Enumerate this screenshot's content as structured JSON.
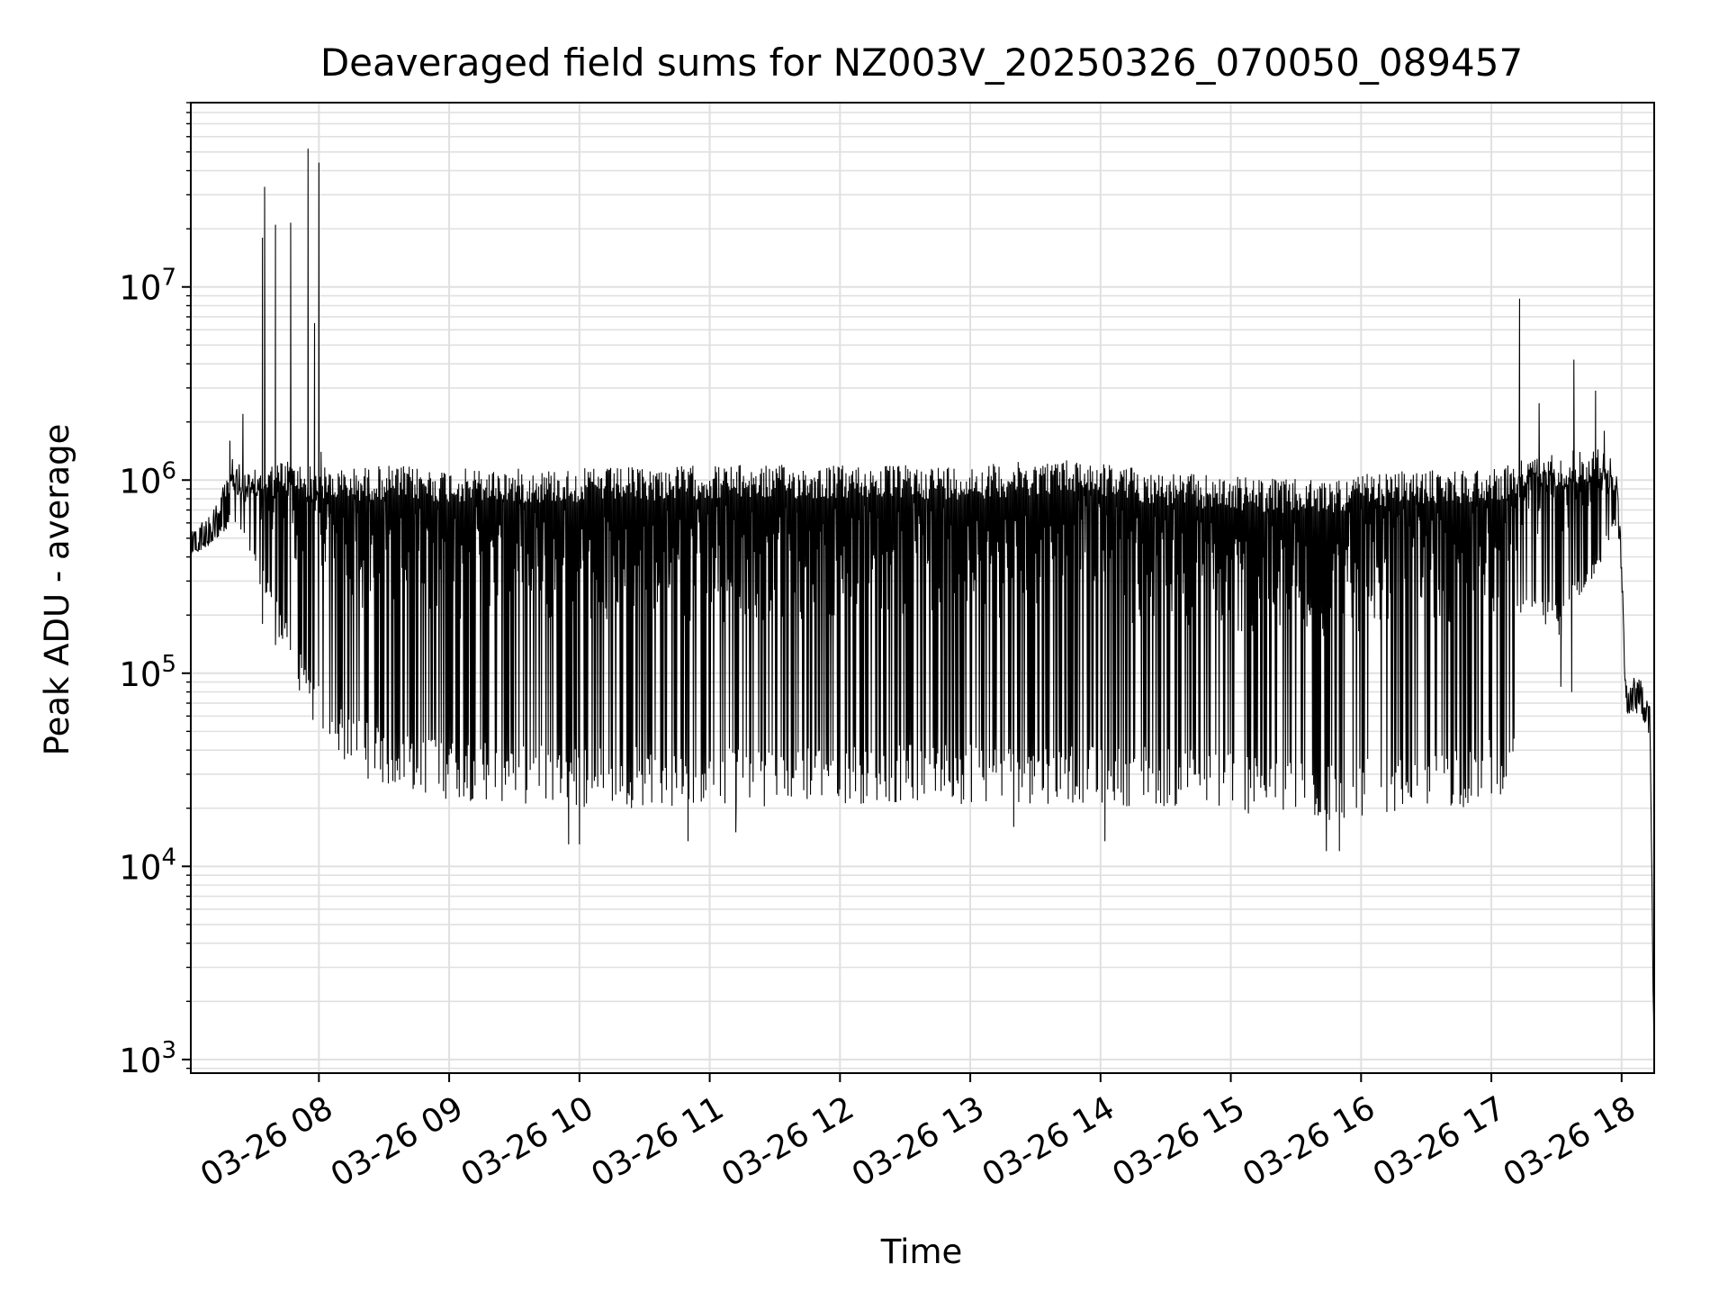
{
  "chart_data": {
    "type": "line",
    "title": "Deaveraged field sums for NZ003V_20250326_070050_089457",
    "xlabel": "Time",
    "ylabel": "Peak ADU - average",
    "yscale": "log",
    "ylim": [
      850,
      90000000
    ],
    "xlim": [
      "2025-03-26 07:01",
      "2025-03-26 18:15"
    ],
    "grid": true,
    "legend": "none",
    "colors": {
      "line": "#000000",
      "grid": "#e0e0e0",
      "axes": "#000000"
    },
    "x_ticks": [
      {
        "time": "2025-03-26 08:00",
        "label": "03-26 08"
      },
      {
        "time": "2025-03-26 09:00",
        "label": "03-26 09"
      },
      {
        "time": "2025-03-26 10:00",
        "label": "03-26 10"
      },
      {
        "time": "2025-03-26 11:00",
        "label": "03-26 11"
      },
      {
        "time": "2025-03-26 12:00",
        "label": "03-26 12"
      },
      {
        "time": "2025-03-26 13:00",
        "label": "03-26 13"
      },
      {
        "time": "2025-03-26 14:00",
        "label": "03-26 14"
      },
      {
        "time": "2025-03-26 15:00",
        "label": "03-26 15"
      },
      {
        "time": "2025-03-26 16:00",
        "label": "03-26 16"
      },
      {
        "time": "2025-03-26 17:00",
        "label": "03-26 17"
      },
      {
        "time": "2025-03-26 18:00",
        "label": "03-26 18"
      }
    ],
    "y_ticks": [
      {
        "value": 1000,
        "base": "10",
        "exp": "3"
      },
      {
        "value": 10000,
        "base": "10",
        "exp": "4"
      },
      {
        "value": 100000,
        "base": "10",
        "exp": "5"
      },
      {
        "value": 1000000,
        "base": "10",
        "exp": "6"
      },
      {
        "value": 10000000,
        "base": "10",
        "exp": "7"
      }
    ],
    "envelope": {
      "description_of_fields": "per time: upper value and lower value of the oscillating trace",
      "points": [
        {
          "time": "2025-03-26 07:01",
          "upper": 550000,
          "lower": 400000
        },
        {
          "time": "2025-03-26 07:10",
          "upper": 700000,
          "lower": 450000
        },
        {
          "time": "2025-03-26 07:20",
          "upper": 1300000,
          "lower": 600000
        },
        {
          "time": "2025-03-26 07:28",
          "upper": 1100000,
          "lower": 400000
        },
        {
          "time": "2025-03-26 07:35",
          "upper": 1200000,
          "lower": 250000
        },
        {
          "time": "2025-03-26 07:45",
          "upper": 1300000,
          "lower": 120000
        },
        {
          "time": "2025-03-26 07:55",
          "upper": 1200000,
          "lower": 60000
        },
        {
          "time": "2025-03-26 08:10",
          "upper": 1150000,
          "lower": 35000
        },
        {
          "time": "2025-03-26 08:30",
          "upper": 1200000,
          "lower": 25000
        },
        {
          "time": "2025-03-26 09:00",
          "upper": 1150000,
          "lower": 22000
        },
        {
          "time": "2025-03-26 10:00",
          "upper": 1150000,
          "lower": 20000
        },
        {
          "time": "2025-03-26 11:00",
          "upper": 1200000,
          "lower": 20000
        },
        {
          "time": "2025-03-26 12:00",
          "upper": 1200000,
          "lower": 21000
        },
        {
          "time": "2025-03-26 13:00",
          "upper": 1200000,
          "lower": 21000
        },
        {
          "time": "2025-03-26 13:50",
          "upper": 1300000,
          "lower": 21000
        },
        {
          "time": "2025-03-26 14:30",
          "upper": 1100000,
          "lower": 20000
        },
        {
          "time": "2025-03-26 15:00",
          "upper": 1050000,
          "lower": 19000
        },
        {
          "time": "2025-03-26 15:40",
          "upper": 1000000,
          "lower": 16000
        },
        {
          "time": "2025-03-26 16:10",
          "upper": 1100000,
          "lower": 19000
        },
        {
          "time": "2025-03-26 16:50",
          "upper": 1150000,
          "lower": 20000
        },
        {
          "time": "2025-03-26 17:10",
          "upper": 1200000,
          "lower": 25000
        },
        {
          "time": "2025-03-26 17:12",
          "upper": 1300000,
          "lower": 200000
        },
        {
          "time": "2025-03-26 17:30",
          "upper": 1400000,
          "lower": 150000
        },
        {
          "time": "2025-03-26 17:50",
          "upper": 1500000,
          "lower": 350000
        },
        {
          "time": "2025-03-26 17:58",
          "upper": 1200000,
          "lower": 600000
        },
        {
          "time": "2025-03-26 18:00",
          "upper": 400000,
          "lower": 300000
        },
        {
          "time": "2025-03-26 18:02",
          "upper": 90000,
          "lower": 60000
        },
        {
          "time": "2025-03-26 18:08",
          "upper": 100000,
          "lower": 60000
        },
        {
          "time": "2025-03-26 18:13",
          "upper": 70000,
          "lower": 50000
        },
        {
          "time": "2025-03-26 18:15",
          "upper": 1000,
          "lower": 900
        }
      ]
    },
    "spikes": [
      {
        "time": "2025-03-26 07:19",
        "value": 1600000
      },
      {
        "time": "2025-03-26 07:25",
        "value": 2200000
      },
      {
        "time": "2025-03-26 07:34",
        "value": 18000000
      },
      {
        "time": "2025-03-26 07:35",
        "value": 33000000
      },
      {
        "time": "2025-03-26 07:40",
        "value": 21000000
      },
      {
        "time": "2025-03-26 07:47",
        "value": 21500000
      },
      {
        "time": "2025-03-26 07:55",
        "value": 52000000
      },
      {
        "time": "2025-03-26 07:58",
        "value": 6500000
      },
      {
        "time": "2025-03-26 08:00",
        "value": 44000000
      },
      {
        "time": "2025-03-26 08:01",
        "value": 1400000
      },
      {
        "time": "2025-03-26 17:13",
        "value": 8700000
      },
      {
        "time": "2025-03-26 17:22",
        "value": 2500000
      },
      {
        "time": "2025-03-26 17:38",
        "value": 4200000
      },
      {
        "time": "2025-03-26 17:48",
        "value": 2900000
      },
      {
        "time": "2025-03-26 17:52",
        "value": 1800000
      }
    ],
    "dips": [
      {
        "time": "2025-03-26 07:34",
        "value": 180000
      },
      {
        "time": "2025-03-26 07:40",
        "value": 140000
      },
      {
        "time": "2025-03-26 09:55",
        "value": 13000
      },
      {
        "time": "2025-03-26 10:00",
        "value": 13000
      },
      {
        "time": "2025-03-26 10:50",
        "value": 13500
      },
      {
        "time": "2025-03-26 11:12",
        "value": 15000
      },
      {
        "time": "2025-03-26 13:20",
        "value": 16000
      },
      {
        "time": "2025-03-26 14:02",
        "value": 13500
      },
      {
        "time": "2025-03-26 15:44",
        "value": 12000
      },
      {
        "time": "2025-03-26 15:50",
        "value": 12000
      },
      {
        "time": "2025-03-26 17:32",
        "value": 85000
      },
      {
        "time": "2025-03-26 17:37",
        "value": 80000
      }
    ]
  }
}
